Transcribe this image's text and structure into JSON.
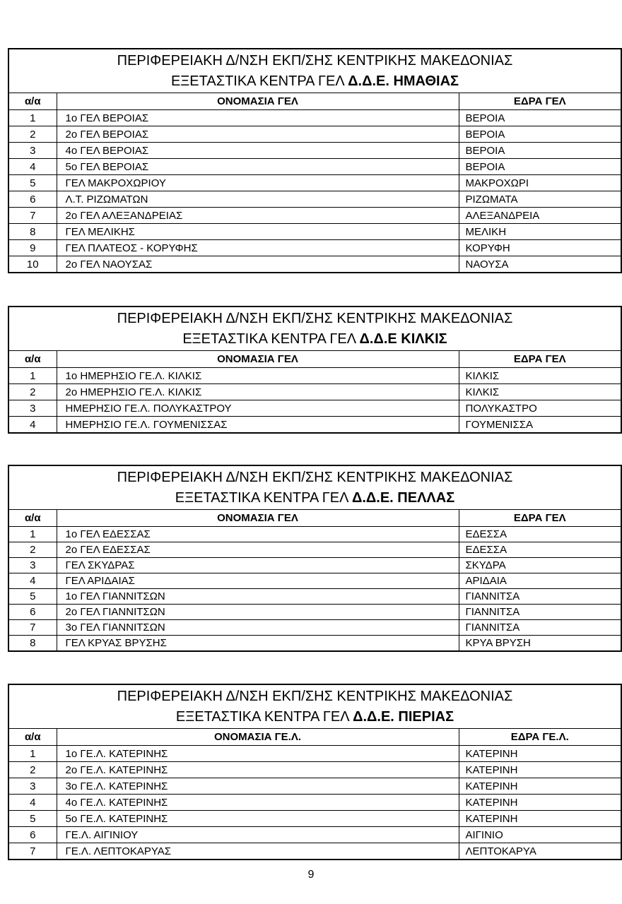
{
  "colors": {
    "background": "#ffffff",
    "text": "#000000",
    "border": "#000000"
  },
  "page": {
    "number": "9"
  },
  "tables": [
    {
      "title_line1": "ΠΕΡΙΦΕΡΕΙΑΚΗ Δ/ΝΣΗ ΕΚΠ/ΣΗΣ ΚΕΝΤΡΙΚΗΣ ΜΑΚΕΔΟΝΙΑΣ",
      "title_line2_prefix": "ΕΞΕΤΑΣΤΙΚΑ ΚΕΝΤΡΑ ΓΕΛ ",
      "title_line2_bold": "Δ.Δ.Ε. ΗΜΑΘΙΑΣ",
      "headers": {
        "index": "α/α",
        "name": "ΟΝΟΜΑΣΙΑ ΓΕΛ",
        "seat": "ΕΔΡΑ ΓΕΛ"
      },
      "rows": [
        {
          "index": "1",
          "name": "1ο ΓΕΛ ΒΕΡΟΙΑΣ",
          "seat": "ΒΕΡΟΙΑ"
        },
        {
          "index": "2",
          "name": "2ο ΓΕΛ ΒΕΡΟΙΑΣ",
          "seat": "ΒΕΡΟΙΑ"
        },
        {
          "index": "3",
          "name": "4ο ΓΕΛ ΒΕΡΟΙΑΣ",
          "seat": "ΒΕΡΟΙΑ"
        },
        {
          "index": "4",
          "name": "5ο ΓΕΛ ΒΕΡΟΙΑΣ",
          "seat": "ΒΕΡΟΙΑ"
        },
        {
          "index": "5",
          "name": "ΓΕΛ ΜΑΚΡΟΧΩΡΙΟΥ",
          "seat": "ΜΑΚΡΟΧΩΡΙ"
        },
        {
          "index": "6",
          "name": "Λ.Τ. ΡΙΖΩΜΑΤΩΝ",
          "seat": "ΡΙΖΩΜΑΤΑ"
        },
        {
          "index": "7",
          "name": "2ο ΓΕΛ ΑΛΕΞΑΝΔΡΕΙΑΣ",
          "seat": "ΑΛΕΞΑΝΔΡΕΙΑ"
        },
        {
          "index": "8",
          "name": "ΓΕΛ ΜΕΛΙΚΗΣ",
          "seat": "ΜΕΛΙΚΗ"
        },
        {
          "index": "9",
          "name": "ΓΕΛ ΠΛΑΤΕΟΣ - ΚΟΡΥΦΗΣ",
          "seat": "ΚΟΡΥΦΗ"
        },
        {
          "index": "10",
          "name": "2ο ΓΕΛ ΝΑΟΥΣΑΣ",
          "seat": "ΝΑΟΥΣΑ"
        }
      ]
    },
    {
      "title_line1": "ΠΕΡΙΦΕΡΕΙΑΚΗ Δ/ΝΣΗ ΕΚΠ/ΣΗΣ ΚΕΝΤΡΙΚΗΣ ΜΑΚΕΔΟΝΙΑΣ",
      "title_line2_prefix": "ΕΞΕΤΑΣΤΙΚΑ ΚΕΝΤΡΑ ΓΕΛ ",
      "title_line2_bold": "Δ.Δ.Ε ΚΙΛΚΙΣ",
      "headers": {
        "index": "α/α",
        "name": "ΟΝΟΜΑΣΙΑ ΓΕΛ",
        "seat": "ΕΔΡΑ ΓΕΛ"
      },
      "rows": [
        {
          "index": "1",
          "name": "1ο ΗΜΕΡΗΣΙΟ ΓΕ.Λ. ΚΙΛΚΙΣ",
          "seat": "ΚΙΛΚΙΣ"
        },
        {
          "index": "2",
          "name": "2ο ΗΜΕΡΗΣΙΟ ΓΕ.Λ. ΚΙΛΚΙΣ",
          "seat": "ΚΙΛΚΙΣ"
        },
        {
          "index": "3",
          "name": "ΗΜΕΡΗΣΙΟ ΓΕ.Λ. ΠΟΛΥΚΑΣΤΡΟΥ",
          "seat": "ΠΟΛΥΚΑΣΤΡΟ"
        },
        {
          "index": "4",
          "name": "ΗΜΕΡΗΣΙΟ ΓΕ.Λ. ΓΟΥΜΕΝΙΣΣΑΣ",
          "seat": "ΓΟΥΜΕΝΙΣΣΑ"
        }
      ]
    },
    {
      "title_line1": "ΠΕΡΙΦΕΡΕΙΑΚΗ Δ/ΝΣΗ ΕΚΠ/ΣΗΣ ΚΕΝΤΡΙΚΗΣ ΜΑΚΕΔΟΝΙΑΣ",
      "title_line2_prefix": "ΕΞΕΤΑΣΤΙΚΑ ΚΕΝΤΡΑ ΓΕΛ ",
      "title_line2_bold": "Δ.Δ.Ε. ΠΕΛΛΑΣ",
      "headers": {
        "index": "α/α",
        "name": "ΟΝΟΜΑΣΙΑ ΓΕΛ",
        "seat": "ΕΔΡΑ ΓΕΛ"
      },
      "rows": [
        {
          "index": "1",
          "name": "1ο ΓΕΛ ΕΔΕΣΣΑΣ",
          "seat": "ΕΔΕΣΣΑ"
        },
        {
          "index": "2",
          "name": "2ο ΓΕΛ ΕΔΕΣΣΑΣ",
          "seat": "ΕΔΕΣΣΑ"
        },
        {
          "index": "3",
          "name": "ΓΕΛ ΣΚΥΔΡΑΣ",
          "seat": "ΣΚΥΔΡΑ"
        },
        {
          "index": "4",
          "name": "ΓΕΛ ΑΡΙΔΑΙΑΣ",
          "seat": "ΑΡΙΔΑΙΑ"
        },
        {
          "index": "5",
          "name": "1ο ΓΕΛ ΓΙΑΝΝΙΤΣΩΝ",
          "seat": "ΓΙΑΝΝΙΤΣΑ"
        },
        {
          "index": "6",
          "name": "2ο ΓΕΛ ΓΙΑΝΝΙΤΣΩΝ",
          "seat": "ΓΙΑΝΝΙΤΣΑ"
        },
        {
          "index": "7",
          "name": "3ο ΓΕΛ ΓΙΑΝΝΙΤΣΩΝ",
          "seat": "ΓΙΑΝΝΙΤΣΑ"
        },
        {
          "index": "8",
          "name": "ΓΕΛ ΚΡΥΑΣ ΒΡΥΣΗΣ",
          "seat": "ΚΡΥΑ ΒΡΥΣΗ"
        }
      ]
    },
    {
      "title_line1": "ΠΕΡΙΦΕΡΕΙΑΚΗ Δ/ΝΣΗ ΕΚΠ/ΣΗΣ ΚΕΝΤΡΙΚΗΣ ΜΑΚΕΔΟΝΙΑΣ",
      "title_line2_prefix": "ΕΞΕΤΑΣΤΙΚΑ ΚΕΝΤΡΑ ΓΕΛ ",
      "title_line2_bold": "Δ.Δ.Ε. ΠΙΕΡΙΑΣ",
      "headers": {
        "index": "α/α",
        "name": "ΟΝΟΜΑΣΙΑ ΓΕ.Λ.",
        "seat": "ΕΔΡΑ ΓΕ.Λ."
      },
      "rows": [
        {
          "index": "1",
          "name": "1ο ΓΕ.Λ. ΚΑΤΕΡΙΝΗΣ",
          "seat": "ΚΑΤΕΡΙΝΗ"
        },
        {
          "index": "2",
          "name": "2ο ΓΕ.Λ. ΚΑΤΕΡΙΝΗΣ",
          "seat": "ΚΑΤΕΡΙΝΗ"
        },
        {
          "index": "3",
          "name": "3ο ΓΕ.Λ. ΚΑΤΕΡΙΝΗΣ",
          "seat": "ΚΑΤΕΡΙΝΗ"
        },
        {
          "index": "4",
          "name": "4ο ΓΕ.Λ. ΚΑΤΕΡΙΝΗΣ",
          "seat": "ΚΑΤΕΡΙΝΗ"
        },
        {
          "index": "5",
          "name": "5ο ΓΕ.Λ. ΚΑΤΕΡΙΝΗΣ",
          "seat": "ΚΑΤΕΡΙΝΗ"
        },
        {
          "index": "6",
          "name": "ΓΕ.Λ. ΑΙΓΙΝΙΟΥ",
          "seat": "ΑΙΓΙΝΙΟ"
        },
        {
          "index": "7",
          "name": "ΓΕ.Λ. ΛΕΠΤΟΚΑΡΥΑΣ",
          "seat": "ΛΕΠΤΟΚΑΡΥΑ"
        }
      ]
    }
  ]
}
